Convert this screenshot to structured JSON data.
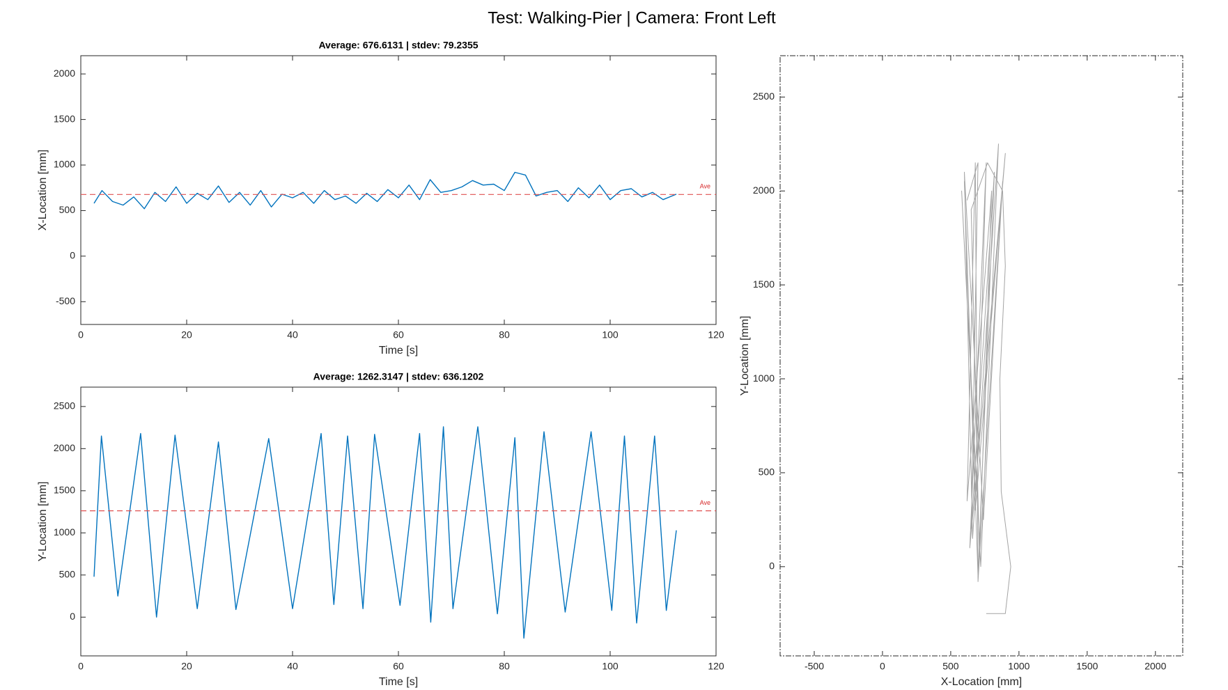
{
  "title": "Test: Walking-Pier  |  Camera: Front Left",
  "chart_data": [
    {
      "type": "line",
      "title": "Average: 676.6131  |  stdev: 79.2355",
      "x_label": "Time [s]",
      "y_label": "X-Location [mm]",
      "xlim": [
        0,
        120
      ],
      "xticks": [
        0,
        20,
        40,
        60,
        80,
        100,
        120
      ],
      "ylim": [
        -750,
        2200
      ],
      "yticks": [
        -500,
        0,
        500,
        1000,
        1500,
        2000
      ],
      "average": {
        "value": 676.6131,
        "label": "Ave",
        "color": "#e05050"
      },
      "x": [
        2.5,
        4,
        6,
        8,
        10,
        12,
        14,
        16,
        18,
        20,
        22,
        24,
        26,
        28,
        30,
        32,
        34,
        36,
        38,
        40,
        42,
        44,
        46,
        48,
        50,
        52,
        54,
        56,
        58,
        60,
        62,
        64,
        66,
        68,
        70,
        72,
        74,
        76,
        78,
        80,
        82,
        84,
        86,
        88,
        90,
        92,
        94,
        96,
        98,
        100,
        102,
        104,
        106,
        108,
        110,
        112.5
      ],
      "series": [
        {
          "name": "X-Location",
          "color": "#0072bd",
          "values": [
            580,
            720,
            600,
            560,
            650,
            520,
            700,
            600,
            760,
            580,
            690,
            620,
            770,
            590,
            700,
            560,
            720,
            540,
            680,
            640,
            700,
            580,
            720,
            620,
            660,
            580,
            690,
            600,
            730,
            640,
            780,
            620,
            840,
            700,
            720,
            760,
            830,
            780,
            790,
            720,
            920,
            890,
            660,
            700,
            720,
            600,
            750,
            640,
            780,
            620,
            720,
            740,
            650,
            700,
            620,
            680
          ]
        }
      ]
    },
    {
      "type": "line",
      "title": "Average: 1262.3147  |  stdev: 636.1202",
      "x_label": "Time [s]",
      "y_label": "Y-Location [mm]",
      "xlim": [
        0,
        120
      ],
      "xticks": [
        0,
        20,
        40,
        60,
        80,
        100,
        120
      ],
      "ylim": [
        -460,
        2730
      ],
      "yticks": [
        0,
        500,
        1000,
        1500,
        2000,
        2500
      ],
      "average": {
        "value": 1262.3147,
        "label": "Ave",
        "color": "#e05050"
      },
      "x": [
        2.5,
        3.9,
        7,
        11.3,
        14.3,
        17.8,
        22,
        26,
        29.3,
        35.5,
        40,
        45.4,
        47.8,
        50.4,
        53.3,
        55.5,
        60.3,
        64,
        66.1,
        68.5,
        70.3,
        75,
        78.7,
        82,
        83.7,
        87.5,
        91.5,
        96.4,
        100.3,
        102.7,
        105,
        108.4,
        110.6,
        112.5
      ],
      "series": [
        {
          "name": "Y-Location",
          "color": "#0072bd",
          "values": [
            480,
            2150,
            250,
            2180,
            0,
            2160,
            100,
            2080,
            90,
            2120,
            100,
            2180,
            150,
            2150,
            100,
            2170,
            140,
            2180,
            -60,
            2260,
            100,
            2260,
            40,
            2130,
            -250,
            2200,
            60,
            2200,
            80,
            2150,
            -70,
            2150,
            80,
            1030
          ]
        }
      ]
    },
    {
      "type": "trajectory",
      "x_label": "X-Location [mm]",
      "y_label": "Y-Location [mm]",
      "xlim": [
        -750,
        2200
      ],
      "xticks": [
        -500,
        0,
        500,
        1000,
        1500,
        2000
      ],
      "ylim": [
        -475,
        2720
      ],
      "yticks": [
        0,
        500,
        1000,
        1500,
        2000,
        2500
      ],
      "x": [
        620,
        700,
        650,
        820,
        700,
        600,
        680,
        900,
        640,
        760,
        690,
        580,
        720,
        850,
        660,
        600,
        740,
        880,
        700,
        680,
        620,
        800,
        710,
        650,
        770,
        880,
        900,
        860,
        870,
        940,
        900,
        760
      ],
      "series": [
        {
          "name": "Trajectory",
          "color": "#333333",
          "values": [
            1950,
            2150,
            200,
            2100,
            -50,
            2050,
            300,
            2200,
            100,
            2150,
            400,
            2000,
            0,
            2250,
            150,
            2100,
            250,
            2050,
            -80,
            2150,
            350,
            2000,
            50,
            1900,
            2150,
            2000,
            1600,
            1000,
            400,
            0,
            -250,
            -250
          ]
        }
      ]
    }
  ]
}
